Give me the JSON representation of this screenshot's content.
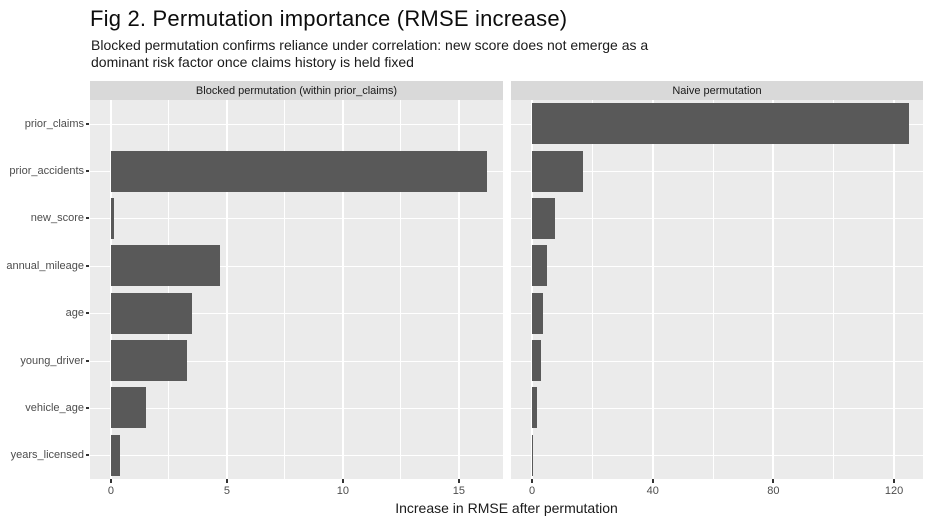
{
  "title": "Fig 2. Permutation importance (RMSE increase)",
  "subtitle_line1": "Blocked permutation confirms reliance under correlation: new score does not emerge as a",
  "subtitle_line2": "dominant risk factor once claims history is held fixed",
  "colors": {
    "bar": "#595959",
    "panel_background": "#ebebeb",
    "strip_background": "#d9d9d9",
    "grid": "#ffffff",
    "axis_text": "#4d4d4d"
  },
  "chart_data": {
    "type": "bar",
    "orientation": "horizontal",
    "title": "Fig 2. Permutation importance (RMSE increase)",
    "subtitle": "Blocked permutation confirms reliance under correlation: new score does not emerge as a dominant risk factor once claims history is held fixed",
    "xlabel": "Increase in RMSE after permutation",
    "ylabel": "",
    "grid": true,
    "legend": false,
    "categories": [
      "prior_claims",
      "prior_accidents",
      "new_score",
      "annual_mileage",
      "age",
      "young_driver",
      "vehicle_age",
      "years_licensed"
    ],
    "panels": [
      {
        "label": "Blocked permutation (within prior_claims)",
        "values": [
          0,
          16.2,
          0.15,
          4.7,
          3.5,
          3.3,
          1.5,
          0.4
        ],
        "x_ticks": [
          0,
          5,
          10,
          15
        ],
        "x_minor_ticks": [
          2.5,
          7.5,
          12.5
        ],
        "x_range": [
          -0.9,
          16.9
        ]
      },
      {
        "label": "Naive permutation",
        "values": [
          125,
          17,
          7.5,
          5,
          3.6,
          3.0,
          1.6,
          0.4
        ],
        "x_ticks": [
          0,
          40,
          80,
          120
        ],
        "x_minor_ticks": [
          20,
          60,
          100
        ],
        "x_range": [
          -7,
          129.6
        ]
      }
    ]
  }
}
